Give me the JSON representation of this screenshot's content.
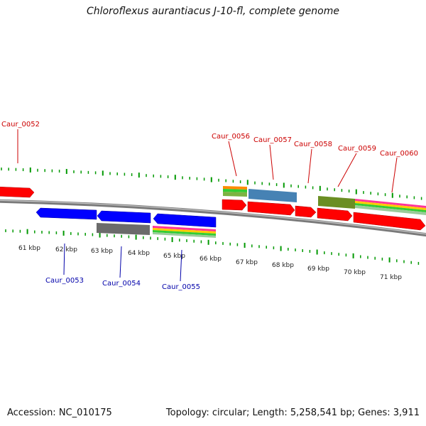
{
  "title": "Chloroflexus aurantiacus J-10-fl, complete genome",
  "footer": {
    "accession": "Accession: NC_010175",
    "summary": "Topology: circular; Length: 5,258,541 bp; Genes: 3,911"
  },
  "colors": {
    "forward_gene": "#ff0000",
    "reverse_gene": "#0000ff",
    "forward_label": "#cc0000",
    "reverse_label": "#0000aa",
    "backbone": "#808080",
    "ticks": "#009900",
    "ortholog_gray": "#6b6b6b",
    "ortholog_steelblue": "#4682b4",
    "ortholog_olive": "#6b8e23"
  },
  "scale": {
    "ticks_kbp": [
      "61 kbp",
      "62 kbp",
      "63 kbp",
      "64 kbp",
      "65 kbp",
      "66 kbp",
      "67 kbp",
      "68 kbp",
      "69 kbp",
      "70 kbp",
      "71 kbp"
    ]
  },
  "genes": {
    "forward": [
      {
        "id": "g0052",
        "label": "Caur_0052"
      },
      {
        "id": "g0056",
        "label": "Caur_0056"
      },
      {
        "id": "g0057",
        "label": "Caur_0057"
      },
      {
        "id": "g0058",
        "label": "Caur_0058"
      },
      {
        "id": "g0059",
        "label": "Caur_0059"
      },
      {
        "id": "g0060",
        "label": "Caur_0060"
      }
    ],
    "reverse": [
      {
        "id": "g0053",
        "label": "Caur_0053"
      },
      {
        "id": "g0054",
        "label": "Caur_0054"
      },
      {
        "id": "g0055",
        "label": "Caur_0055"
      }
    ]
  }
}
